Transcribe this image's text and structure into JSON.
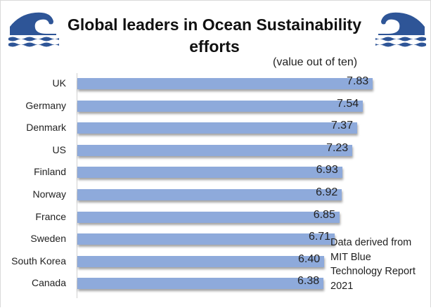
{
  "chart_data": {
    "type": "bar",
    "orientation": "horizontal",
    "title": "Global leaders in Ocean Sustainability efforts",
    "subtitle": "(value out of ten)",
    "xlabel": "",
    "ylabel": "",
    "categories": [
      "UK",
      "Germany",
      "Denmark",
      "US",
      "Finland",
      "Norway",
      "France",
      "Sweden",
      "South Korea",
      "Canada"
    ],
    "values": [
      7.83,
      7.54,
      7.37,
      7.23,
      6.93,
      6.92,
      6.85,
      6.71,
      6.4,
      6.38
    ],
    "value_labels": [
      "7.83",
      "7.54",
      "7.37",
      "7.23",
      "6.93",
      "6.92",
      "6.85",
      "6.71",
      "6.40",
      "6.38"
    ],
    "grid": false,
    "bar_color": "#8eaadb",
    "annotation": "Data derived from MIT Blue Technology Report 2021"
  },
  "icons": {
    "left": "wave-icon",
    "right": "wave-icon",
    "color": "#2e5597"
  },
  "note_lines": [
    "Data derived from",
    "MIT Blue",
    "Technology Report",
    "2021"
  ]
}
